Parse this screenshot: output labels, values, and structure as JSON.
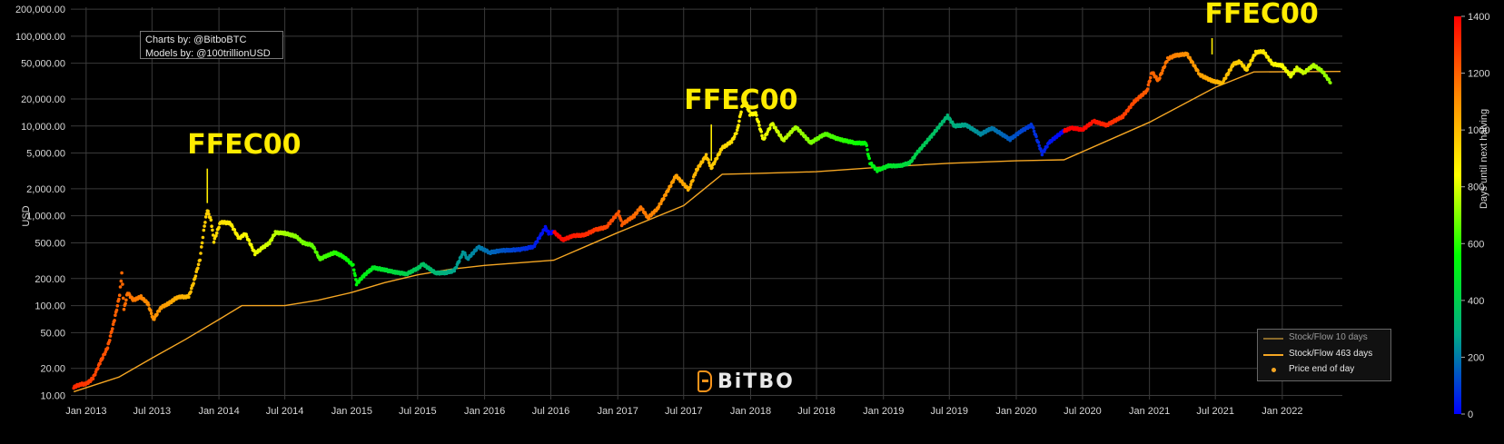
{
  "chart_data": {
    "type": "scatter",
    "title": "",
    "ylabel": "USD",
    "y_scale": "log",
    "ylim": [
      9,
      210000
    ],
    "xlim": [
      "2012-11-20",
      "2022-06-15"
    ],
    "y_ticks": [
      {
        "v": 200000,
        "label": "200,000.00"
      },
      {
        "v": 100000,
        "label": "100,000.00"
      },
      {
        "v": 50000,
        "label": "50,000.00"
      },
      {
        "v": 20000,
        "label": "20,000.00"
      },
      {
        "v": 10000,
        "label": "10,000.00"
      },
      {
        "v": 5000,
        "label": "5,000.00"
      },
      {
        "v": 2000,
        "label": "2,000.00"
      },
      {
        "v": 1000,
        "label": "1,000.00"
      },
      {
        "v": 500,
        "label": "500.00"
      },
      {
        "v": 200,
        "label": "200.00"
      },
      {
        "v": 100,
        "label": "100.00"
      },
      {
        "v": 50,
        "label": "50.00"
      },
      {
        "v": 20,
        "label": "20.00"
      },
      {
        "v": 10,
        "label": "10.00"
      }
    ],
    "x_ticks": [
      {
        "d": "2013-01-01",
        "label": "Jan 2013"
      },
      {
        "d": "2013-07-01",
        "label": "Jul 2013"
      },
      {
        "d": "2014-01-01",
        "label": "Jan 2014"
      },
      {
        "d": "2014-07-01",
        "label": "Jul 2014"
      },
      {
        "d": "2015-01-01",
        "label": "Jan 2015"
      },
      {
        "d": "2015-07-01",
        "label": "Jul 2015"
      },
      {
        "d": "2016-01-01",
        "label": "Jan 2016"
      },
      {
        "d": "2016-07-01",
        "label": "Jul 2016"
      },
      {
        "d": "2017-01-01",
        "label": "Jan 2017"
      },
      {
        "d": "2017-07-01",
        "label": "Jul 2017"
      },
      {
        "d": "2018-01-01",
        "label": "Jan 2018"
      },
      {
        "d": "2018-07-01",
        "label": "Jul 2018"
      },
      {
        "d": "2019-01-01",
        "label": "Jan 2019"
      },
      {
        "d": "2019-07-01",
        "label": "Jul 2019"
      },
      {
        "d": "2020-01-01",
        "label": "Jan 2020"
      },
      {
        "d": "2020-07-01",
        "label": "Jul 2020"
      },
      {
        "d": "2021-01-01",
        "label": "Jan 2021"
      },
      {
        "d": "2021-07-01",
        "label": "Jul 2021"
      },
      {
        "d": "2022-01-01",
        "label": "Jan 2022"
      }
    ],
    "halvings": [
      "2012-11-28",
      "2016-07-09",
      "2020-05-11",
      "2024-04-20"
    ],
    "series": [
      {
        "name": "Price end of day",
        "kind": "scatter",
        "color_by": "Days until next halving",
        "points": [
          [
            "2012-11-28",
            12.3
          ],
          [
            "2012-12-15",
            13.3
          ],
          [
            "2013-01-01",
            13.4
          ],
          [
            "2013-01-20",
            15.5
          ],
          [
            "2013-02-10",
            24
          ],
          [
            "2013-03-01",
            34
          ],
          [
            "2013-03-20",
            70
          ],
          [
            "2013-04-03",
            130
          ],
          [
            "2013-04-09",
            230
          ],
          [
            "2013-04-15",
            90
          ],
          [
            "2013-04-25",
            140
          ],
          [
            "2013-05-10",
            115
          ],
          [
            "2013-06-01",
            125
          ],
          [
            "2013-06-20",
            105
          ],
          [
            "2013-07-05",
            70
          ],
          [
            "2013-07-25",
            95
          ],
          [
            "2013-08-15",
            105
          ],
          [
            "2013-09-10",
            125
          ],
          [
            "2013-10-10",
            125
          ],
          [
            "2013-10-25",
            190
          ],
          [
            "2013-11-10",
            330
          ],
          [
            "2013-11-22",
            780
          ],
          [
            "2013-11-30",
            1150
          ],
          [
            "2013-12-10",
            900
          ],
          [
            "2013-12-18",
            520
          ],
          [
            "2014-01-05",
            850
          ],
          [
            "2014-02-01",
            830
          ],
          [
            "2014-02-25",
            560
          ],
          [
            "2014-03-15",
            630
          ],
          [
            "2014-04-10",
            380
          ],
          [
            "2014-05-01",
            440
          ],
          [
            "2014-05-20",
            500
          ],
          [
            "2014-06-05",
            650
          ],
          [
            "2014-07-01",
            640
          ],
          [
            "2014-08-01",
            590
          ],
          [
            "2014-08-20",
            500
          ],
          [
            "2014-09-15",
            470
          ],
          [
            "2014-10-05",
            330
          ],
          [
            "2014-10-25",
            360
          ],
          [
            "2014-11-15",
            390
          ],
          [
            "2014-12-10",
            350
          ],
          [
            "2015-01-05",
            280
          ],
          [
            "2015-01-14",
            175
          ],
          [
            "2015-02-05",
            220
          ],
          [
            "2015-03-01",
            265
          ],
          [
            "2015-04-01",
            250
          ],
          [
            "2015-05-01",
            235
          ],
          [
            "2015-06-01",
            225
          ],
          [
            "2015-07-01",
            260
          ],
          [
            "2015-07-15",
            290
          ],
          [
            "2015-08-20",
            230
          ],
          [
            "2015-09-15",
            232
          ],
          [
            "2015-10-10",
            245
          ],
          [
            "2015-11-04",
            400
          ],
          [
            "2015-11-15",
            330
          ],
          [
            "2015-12-15",
            450
          ],
          [
            "2016-01-15",
            390
          ],
          [
            "2016-02-15",
            410
          ],
          [
            "2016-03-15",
            415
          ],
          [
            "2016-04-15",
            425
          ],
          [
            "2016-05-15",
            455
          ],
          [
            "2016-06-16",
            740
          ],
          [
            "2016-06-25",
            640
          ],
          [
            "2016-07-10",
            660
          ],
          [
            "2016-08-03",
            540
          ],
          [
            "2016-09-01",
            600
          ],
          [
            "2016-10-01",
            610
          ],
          [
            "2016-11-01",
            700
          ],
          [
            "2016-12-01",
            750
          ],
          [
            "2017-01-04",
            1100
          ],
          [
            "2017-01-12",
            800
          ],
          [
            "2017-02-15",
            1000
          ],
          [
            "2017-03-05",
            1250
          ],
          [
            "2017-03-25",
            950
          ],
          [
            "2017-04-20",
            1200
          ],
          [
            "2017-05-15",
            1800
          ],
          [
            "2017-06-10",
            2800
          ],
          [
            "2017-07-15",
            1950
          ],
          [
            "2017-08-05",
            3200
          ],
          [
            "2017-09-01",
            4700
          ],
          [
            "2017-09-15",
            3400
          ],
          [
            "2017-10-15",
            5700
          ],
          [
            "2017-11-10",
            6700
          ],
          [
            "2017-11-25",
            8800
          ],
          [
            "2017-12-08",
            16000
          ],
          [
            "2017-12-17",
            19500
          ],
          [
            "2017-12-30",
            13500
          ],
          [
            "2018-01-15",
            13800
          ],
          [
            "2018-02-05",
            7000
          ],
          [
            "2018-03-01",
            10700
          ],
          [
            "2018-04-01",
            6900
          ],
          [
            "2018-05-05",
            9800
          ],
          [
            "2018-06-15",
            6500
          ],
          [
            "2018-07-25",
            8200
          ],
          [
            "2018-09-01",
            7100
          ],
          [
            "2018-10-15",
            6500
          ],
          [
            "2018-11-14",
            6400
          ],
          [
            "2018-11-25",
            3900
          ],
          [
            "2018-12-15",
            3200
          ],
          [
            "2019-01-15",
            3600
          ],
          [
            "2019-02-15",
            3600
          ],
          [
            "2019-03-15",
            3900
          ],
          [
            "2019-04-03",
            5000
          ],
          [
            "2019-05-15",
            7900
          ],
          [
            "2019-06-26",
            12900
          ],
          [
            "2019-07-15",
            10000
          ],
          [
            "2019-08-15",
            10300
          ],
          [
            "2019-09-25",
            8100
          ],
          [
            "2019-10-26",
            9500
          ],
          [
            "2019-12-15",
            7100
          ],
          [
            "2020-01-15",
            8800
          ],
          [
            "2020-02-13",
            10300
          ],
          [
            "2020-03-12",
            4900
          ],
          [
            "2020-04-01",
            6600
          ],
          [
            "2020-05-10",
            8800
          ],
          [
            "2020-06-01",
            9500
          ],
          [
            "2020-07-01",
            9100
          ],
          [
            "2020-08-01",
            11300
          ],
          [
            "2020-09-05",
            10200
          ],
          [
            "2020-10-20",
            12800
          ],
          [
            "2020-11-20",
            18600
          ],
          [
            "2020-12-25",
            24700
          ],
          [
            "2021-01-08",
            40000
          ],
          [
            "2021-01-25",
            32000
          ],
          [
            "2021-02-20",
            56000
          ],
          [
            "2021-03-13",
            61000
          ],
          [
            "2021-04-14",
            63500
          ],
          [
            "2021-05-20",
            37000
          ],
          [
            "2021-06-22",
            31800
          ],
          [
            "2021-07-20",
            30000
          ],
          [
            "2021-08-20",
            49000
          ],
          [
            "2021-09-06",
            52000
          ],
          [
            "2021-09-25",
            42000
          ],
          [
            "2021-10-20",
            66000
          ],
          [
            "2021-11-10",
            68000
          ],
          [
            "2021-12-05",
            49000
          ],
          [
            "2022-01-01",
            47000
          ],
          [
            "2022-01-24",
            36000
          ],
          [
            "2022-02-10",
            44000
          ],
          [
            "2022-03-01",
            39000
          ],
          [
            "2022-03-28",
            47500
          ],
          [
            "2022-04-20",
            41000
          ],
          [
            "2022-05-15",
            30000
          ]
        ]
      },
      {
        "name": "Stock/Flow 463 days",
        "kind": "line",
        "color": "#f5a623",
        "points": [
          [
            "2012-11-28",
            11
          ],
          [
            "2013-04-01",
            16
          ],
          [
            "2013-07-01",
            26
          ],
          [
            "2013-10-01",
            42
          ],
          [
            "2014-01-01",
            70
          ],
          [
            "2014-03-05",
            100
          ],
          [
            "2014-07-01",
            100
          ],
          [
            "2014-10-01",
            115
          ],
          [
            "2015-01-01",
            140
          ],
          [
            "2015-04-01",
            180
          ],
          [
            "2015-07-01",
            220
          ],
          [
            "2015-10-01",
            255
          ],
          [
            "2016-01-01",
            280
          ],
          [
            "2016-07-09",
            320
          ],
          [
            "2017-01-01",
            650
          ],
          [
            "2017-07-01",
            1300
          ],
          [
            "2017-10-15",
            2900
          ],
          [
            "2018-01-01",
            2950
          ],
          [
            "2018-07-01",
            3100
          ],
          [
            "2019-01-01",
            3500
          ],
          [
            "2019-07-01",
            3850
          ],
          [
            "2020-01-01",
            4100
          ],
          [
            "2020-05-11",
            4200
          ],
          [
            "2021-01-01",
            11000
          ],
          [
            "2021-07-01",
            27000
          ],
          [
            "2021-10-15",
            40000
          ],
          [
            "2022-06-10",
            40500
          ]
        ]
      }
    ],
    "legend": {
      "placement": "bottom-right",
      "entries": [
        {
          "label": "Stock/Flow 10 days",
          "color": "#8a6a2a",
          "kind": "line"
        },
        {
          "label": "Stock/Flow 463 days",
          "color": "#f5a623",
          "kind": "line"
        },
        {
          "label": "Price end of day",
          "color": "#f5a623",
          "kind": "dot"
        }
      ]
    },
    "colorbar": {
      "title": "Days until next halving",
      "range": [
        0,
        1400
      ],
      "ticks": [
        0,
        200,
        400,
        600,
        800,
        1000,
        1200,
        1400
      ],
      "colors": [
        "#0000ff",
        "#00aa88",
        "#00ff00",
        "#ffff00",
        "#ff8800",
        "#ff0000"
      ]
    },
    "annotations": [
      {
        "text": "FFEC00",
        "x": "2013-11-30",
        "y": 1150,
        "color": "#ffec00"
      },
      {
        "text": "FFEC00",
        "x": "2017-09-15",
        "y": 3400,
        "color": "#ffec00"
      },
      {
        "text": "FFEC00",
        "x": "2021-06-22",
        "y": 52000,
        "color": "#ffec00"
      }
    ],
    "grid": true
  },
  "credits": {
    "charts_by": "Charts by: @BitboBTC",
    "models_by": "Models by: @100trillionUSD"
  },
  "brand": {
    "logo_text": "BiTBO",
    "accent": "#f7931a"
  }
}
